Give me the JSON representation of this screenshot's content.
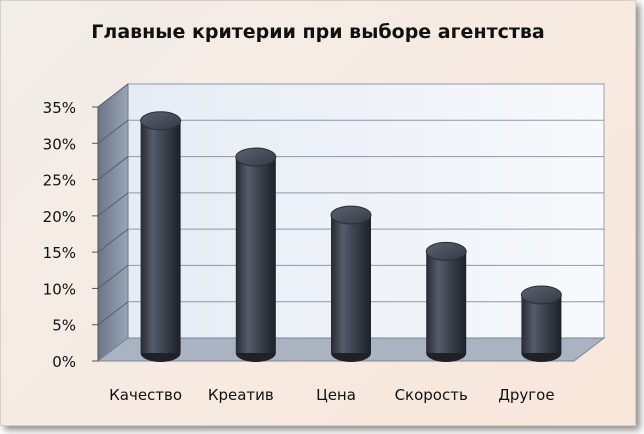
{
  "chart_data": {
    "type": "bar",
    "title": "Главные критерии при выборе агентства",
    "categories": [
      "Качество",
      "Креатив",
      "Цена",
      "Скорость",
      "Другое"
    ],
    "values": [
      32,
      27,
      19,
      14,
      8
    ],
    "ylim": [
      0,
      35
    ],
    "yticks": [
      "0%",
      "5%",
      "10%",
      "15%",
      "20%",
      "25%",
      "30%",
      "35%"
    ],
    "grid": true,
    "bar_color": "#3d4350"
  }
}
